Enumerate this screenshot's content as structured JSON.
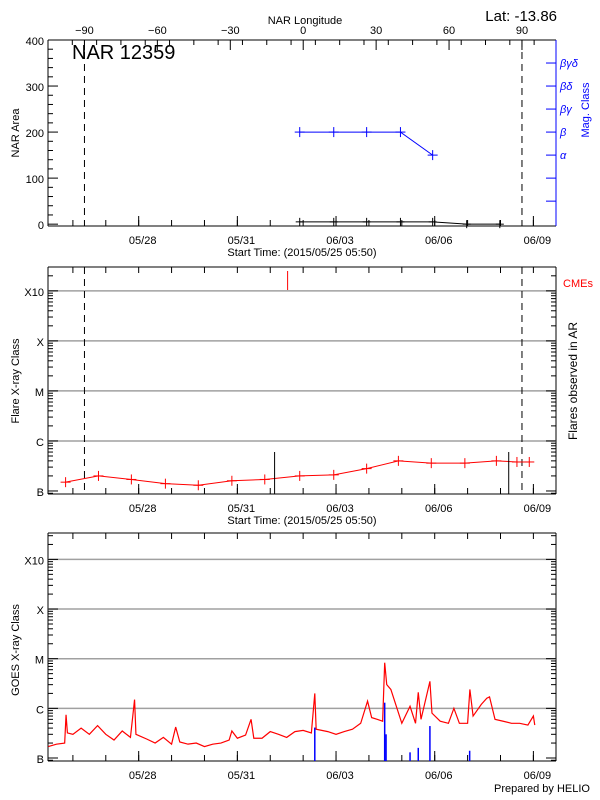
{
  "header": {
    "lat_label": "Lat: -13.86",
    "region_title": "NAR 12359",
    "footer": "Prepared by HELIO"
  },
  "colors": {
    "mag_class": "#0000ff",
    "flare_class": "#ff0000",
    "goes": "#ff0000",
    "goes_events": "#0000ff",
    "cme": "#ff0000",
    "grid": "#a0a0a0",
    "axes": "#000000"
  },
  "time_axis": {
    "xlim": [
      "2015-05-25T05:50",
      "2015-06-09T16:30"
    ],
    "tick_labels": [
      {
        "label": "05/28",
        "date": "2015-05-28T00:00"
      },
      {
        "label": "05/31",
        "date": "2015-05-31T00:00"
      },
      {
        "label": "06/03",
        "date": "2015-06-03T00:00"
      },
      {
        "label": "06/06",
        "date": "2015-06-06T00:00"
      },
      {
        "label": "06/09",
        "date": "2015-06-09T00:00"
      }
    ],
    "minor_tick": "1 day",
    "xlabel": "Start Time: (2015/05/25 05:50)"
  },
  "class_labels": [
    {
      "label": "B",
      "flux": 1e-07
    },
    {
      "label": "C",
      "flux": 1e-06
    },
    {
      "label": "M",
      "flux": 1e-05
    },
    {
      "label": "X",
      "flux": 0.0001
    },
    {
      "label": "X10",
      "flux": 0.001
    }
  ],
  "chart_data": [
    {
      "type": "line",
      "panel": "top",
      "ylabel": "NAR Area",
      "ylim": [
        -4,
        400
      ],
      "yticks": [
        0,
        100,
        200,
        300,
        400
      ],
      "top_axis": {
        "label": "NAR Longitude",
        "xlim": [
          -105,
          104
        ],
        "ticks": [
          -90,
          -60,
          -30,
          0,
          30,
          60,
          90
        ]
      },
      "limb_longitudes": [
        -90,
        90
      ],
      "right_axis": {
        "label": "Mag. Class",
        "classes": [
          {
            "label": "α",
            "value": 150
          },
          {
            "label": "β",
            "value": 200
          },
          {
            "label": "βγ",
            "value": 250
          },
          {
            "label": "βδ",
            "value": 300
          },
          {
            "label": "βγδ",
            "value": 350
          }
        ],
        "extra_ticks": [
          50,
          100
        ]
      },
      "series": [
        {
          "name": "Mag. Class",
          "color": "#0000ff",
          "points": [
            {
              "date": "2015-06-01T21:30",
              "class": "β"
            },
            {
              "date": "2015-06-02T22:20",
              "class": "β"
            },
            {
              "date": "2015-06-03T22:20",
              "class": "β"
            },
            {
              "date": "2015-06-04T23:00",
              "class": "β"
            },
            {
              "date": "2015-06-05T22:30",
              "class": "α"
            }
          ]
        },
        {
          "name": "NAR Area",
          "color": "#000000",
          "points": [
            {
              "date": "2015-06-01T21:30",
              "value": 5
            },
            {
              "date": "2015-06-02T22:20",
              "value": 5
            },
            {
              "date": "2015-06-03T22:20",
              "value": 5
            },
            {
              "date": "2015-06-04T23:00",
              "value": 5
            },
            {
              "date": "2015-06-05T22:30",
              "value": 5
            },
            {
              "date": "2015-06-06T23:20",
              "value": 0
            },
            {
              "date": "2015-06-07T23:30",
              "value": 0
            }
          ]
        }
      ]
    },
    {
      "type": "line",
      "panel": "middle",
      "ylabel": "Flare X-ray Class",
      "right_label": "Flares observed in AR",
      "cme_label": "CMEs",
      "ylim": [
        8.7e-08,
        0.003
      ],
      "yscale": "log",
      "grid": true,
      "limb_longitudes": [
        -90,
        90
      ],
      "series": [
        {
          "color": "#ff0000",
          "points": [
            [
              "2015-05-25T18:40",
              1.5e-07
            ],
            [
              "2015-05-26T18:40",
              2e-07
            ],
            [
              "2015-05-27T18:40",
              1.7e-07
            ],
            [
              "2015-05-28T19:30",
              1.4e-07
            ],
            [
              "2015-05-29T19:30",
              1.3e-07
            ],
            [
              "2015-05-30T20:00",
              1.6e-07
            ],
            [
              "2015-05-31T20:00",
              1.7e-07
            ],
            [
              "2015-06-01T21:30",
              2e-07
            ],
            [
              "2015-06-02T22:20",
              2.1e-07
            ],
            [
              "2015-06-03T22:20",
              2.8e-07
            ],
            [
              "2015-06-04T21:30",
              4e-07
            ],
            [
              "2015-06-05T21:30",
              3.6e-07
            ],
            [
              "2015-06-06T22:00",
              3.6e-07
            ],
            [
              "2015-06-07T21:00",
              4e-07
            ],
            [
              "2015-06-08T12:00",
              3.8e-07
            ],
            [
              "2015-06-08T21:00",
              3.8e-07
            ]
          ]
        }
      ],
      "flares_in_ar": [
        "2015-06-01T03:10",
        "2015-06-08T06:00"
      ],
      "cmes": [
        "2015-06-01T12:40"
      ]
    },
    {
      "type": "line",
      "panel": "bottom",
      "ylabel": "GOES X-ray Class",
      "ylim": [
        8.7e-08,
        0.0034
      ],
      "yscale": "log",
      "grid": true,
      "series": [
        {
          "color": "#ff0000",
          "points": [
            [
              "2015-05-25T06:00",
              1.7e-07
            ],
            [
              "2015-05-25T12:00",
              1.9e-07
            ],
            [
              "2015-05-25T18:00",
              2e-07
            ],
            [
              "2015-05-25T19:00",
              7.4e-07
            ],
            [
              "2015-05-25T20:00",
              3.2e-07
            ],
            [
              "2015-05-26T00:00",
              3e-07
            ],
            [
              "2015-05-26T06:00",
              4e-07
            ],
            [
              "2015-05-26T12:00",
              3e-07
            ],
            [
              "2015-05-26T18:00",
              4.5e-07
            ],
            [
              "2015-05-27T00:00",
              3e-07
            ],
            [
              "2015-05-27T06:00",
              2.3e-07
            ],
            [
              "2015-05-27T12:00",
              3.5e-07
            ],
            [
              "2015-05-27T18:00",
              2.6e-07
            ],
            [
              "2015-05-27T21:00",
              1.5e-06
            ],
            [
              "2015-05-27T22:00",
              3e-07
            ],
            [
              "2015-05-28T06:00",
              2.4e-07
            ],
            [
              "2015-05-28T12:00",
              2e-07
            ],
            [
              "2015-05-28T18:00",
              2.6e-07
            ],
            [
              "2015-05-29T00:00",
              1.9e-07
            ],
            [
              "2015-05-29T03:00",
              4.2e-07
            ],
            [
              "2015-05-29T06:00",
              2.1e-07
            ],
            [
              "2015-05-29T12:00",
              1.9e-07
            ],
            [
              "2015-05-29T18:00",
              2e-07
            ],
            [
              "2015-05-30T00:00",
              1.7e-07
            ],
            [
              "2015-05-30T06:00",
              1.9e-07
            ],
            [
              "2015-05-30T12:00",
              2e-07
            ],
            [
              "2015-05-30T18:00",
              2.3e-07
            ],
            [
              "2015-05-30T20:00",
              3.5e-07
            ],
            [
              "2015-05-31T00:00",
              2.5e-07
            ],
            [
              "2015-05-31T06:00",
              2.9e-07
            ],
            [
              "2015-05-31T10:00",
              6e-07
            ],
            [
              "2015-05-31T12:00",
              2.5e-07
            ],
            [
              "2015-05-31T18:00",
              2.5e-07
            ],
            [
              "2015-06-01T00:00",
              3.4e-07
            ],
            [
              "2015-06-01T06:00",
              3e-07
            ],
            [
              "2015-06-01T12:00",
              2.6e-07
            ],
            [
              "2015-06-01T18:00",
              3.4e-07
            ],
            [
              "2015-06-02T00:00",
              3.6e-07
            ],
            [
              "2015-06-02T06:00",
              3.2e-07
            ],
            [
              "2015-06-02T08:30",
              2e-06
            ],
            [
              "2015-06-02T09:30",
              3.8e-07
            ],
            [
              "2015-06-02T18:00",
              3.4e-07
            ],
            [
              "2015-06-03T00:00",
              3e-07
            ],
            [
              "2015-06-03T06:00",
              3.4e-07
            ],
            [
              "2015-06-03T12:00",
              3.8e-07
            ],
            [
              "2015-06-03T18:00",
              5e-07
            ],
            [
              "2015-06-03T23:00",
              1.4e-06
            ],
            [
              "2015-06-04T02:00",
              6.5e-07
            ],
            [
              "2015-06-04T06:00",
              6e-07
            ],
            [
              "2015-06-04T10:00",
              5.5e-07
            ],
            [
              "2015-06-04T11:30",
              8.3e-06
            ],
            [
              "2015-06-04T13:00",
              3e-06
            ],
            [
              "2015-06-04T16:00",
              2.4e-06
            ],
            [
              "2015-06-04T20:00",
              1.1e-06
            ],
            [
              "2015-06-05T00:00",
              5e-07
            ],
            [
              "2015-06-05T06:00",
              1.1e-06
            ],
            [
              "2015-06-05T10:00",
              5e-07
            ],
            [
              "2015-06-05T12:00",
              2.1e-06
            ],
            [
              "2015-06-05T14:00",
              6e-07
            ],
            [
              "2015-06-05T20:30",
              3.5e-06
            ],
            [
              "2015-06-05T22:00",
              8e-07
            ],
            [
              "2015-06-06T04:00",
              5.5e-07
            ],
            [
              "2015-06-06T10:00",
              5e-07
            ],
            [
              "2015-06-06T14:00",
              1e-06
            ],
            [
              "2015-06-06T18:00",
              5e-07
            ],
            [
              "2015-06-07T00:00",
              5e-07
            ],
            [
              "2015-06-07T01:40",
              2.4e-06
            ],
            [
              "2015-06-07T04:00",
              7e-07
            ],
            [
              "2015-06-07T10:00",
              1.2e-06
            ],
            [
              "2015-06-07T14:00",
              1.6e-06
            ],
            [
              "2015-06-07T16:00",
              1.7e-06
            ],
            [
              "2015-06-07T20:00",
              6e-07
            ],
            [
              "2015-06-08T02:00",
              5.5e-07
            ],
            [
              "2015-06-08T08:00",
              5e-07
            ],
            [
              "2015-06-08T14:00",
              5e-07
            ],
            [
              "2015-06-08T20:00",
              4.6e-07
            ],
            [
              "2015-06-09T00:00",
              7e-07
            ],
            [
              "2015-06-09T01:00",
              4.6e-07
            ]
          ]
        }
      ],
      "events": [
        [
          "2015-06-02T08:30",
          4.1e-07
        ],
        [
          "2015-06-04T11:30",
          1.3e-06
        ],
        [
          "2015-06-04T12:30",
          3e-07
        ],
        [
          "2015-06-05T06:00",
          1.3e-07
        ],
        [
          "2015-06-05T12:00",
          1.6e-07
        ],
        [
          "2015-06-05T20:30",
          4.4e-07
        ],
        [
          "2015-06-07T01:30",
          1.4e-07
        ]
      ]
    }
  ]
}
